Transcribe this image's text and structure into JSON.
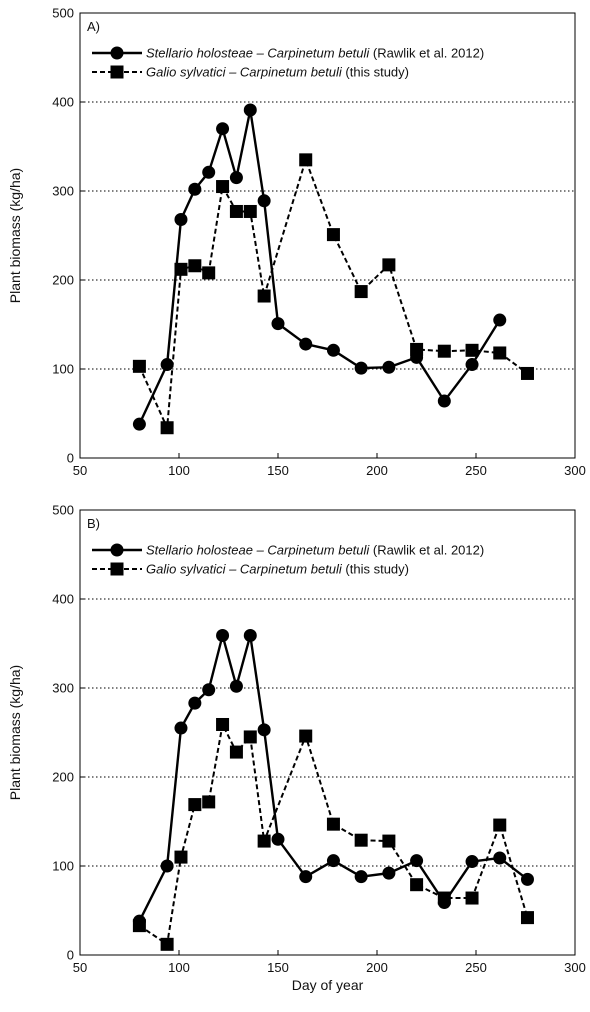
{
  "chart_data": [
    {
      "type": "line",
      "panel_label": "A)",
      "xlabel": "",
      "ylabel": "Plant biomass (kg/ha)",
      "xlim": [
        50,
        300
      ],
      "ylim": [
        0,
        500
      ],
      "xticks": [
        50,
        100,
        150,
        200,
        250,
        300
      ],
      "yticks": [
        0,
        100,
        200,
        300,
        400,
        500
      ],
      "grid": "horizontal dotted",
      "legend_position": "top-left",
      "series": [
        {
          "name_italic": "Stellario holosteae – Carpinetum betuli",
          "name_suffix": " (Rawlik et al. 2012)",
          "line_style": "solid",
          "marker": "circle",
          "color": "#000000",
          "x": [
            80,
            94,
            101,
            108,
            115,
            122,
            129,
            136,
            143,
            150,
            164,
            178,
            192,
            206,
            220,
            234,
            248,
            262
          ],
          "y": [
            38,
            105,
            268,
            302,
            321,
            370,
            315,
            391,
            289,
            151,
            128,
            121,
            101,
            102,
            113,
            64,
            105,
            155
          ]
        },
        {
          "name_italic": "Galio sylvatici – Carpinetum betuli",
          "name_suffix": " (this study)",
          "line_style": "dashed",
          "marker": "square",
          "color": "#000000",
          "x": [
            80,
            94,
            101,
            108,
            115,
            122,
            129,
            136,
            143,
            164,
            178,
            192,
            206,
            220,
            234,
            248,
            262,
            276
          ],
          "y": [
            103,
            34,
            212,
            216,
            208,
            305,
            277,
            277,
            182,
            335,
            251,
            187,
            217,
            122,
            120,
            121,
            118,
            95
          ]
        }
      ]
    },
    {
      "type": "line",
      "panel_label": "B)",
      "xlabel": "Day of year",
      "ylabel": "Plant biomass (kg/ha)",
      "xlim": [
        50,
        300
      ],
      "ylim": [
        0,
        500
      ],
      "xticks": [
        50,
        100,
        150,
        200,
        250,
        300
      ],
      "yticks": [
        0,
        100,
        200,
        300,
        400,
        500
      ],
      "grid": "horizontal dotted",
      "legend_position": "top-left",
      "series": [
        {
          "name_italic": "Stellario holosteae – Carpinetum betuli",
          "name_suffix": " (Rawlik et al. 2012)",
          "line_style": "solid",
          "marker": "circle",
          "color": "#000000",
          "x": [
            80,
            94,
            101,
            108,
            115,
            122,
            129,
            136,
            143,
            150,
            164,
            178,
            192,
            206,
            220,
            234,
            248,
            262,
            276
          ],
          "y": [
            38,
            100,
            255,
            283,
            298,
            359,
            302,
            359,
            253,
            130,
            88,
            106,
            88,
            92,
            106,
            59,
            105,
            109,
            85
          ]
        },
        {
          "name_italic": "Galio sylvatici – Carpinetum betuli",
          "name_suffix": " (this study)",
          "line_style": "dashed",
          "marker": "square",
          "color": "#000000",
          "x": [
            80,
            94,
            101,
            108,
            115,
            122,
            129,
            136,
            143,
            164,
            178,
            192,
            206,
            220,
            234,
            248,
            262,
            276
          ],
          "y": [
            33,
            12,
            110,
            169,
            172,
            259,
            228,
            245,
            128,
            246,
            147,
            129,
            128,
            79,
            64,
            64,
            146,
            42
          ]
        }
      ]
    }
  ]
}
